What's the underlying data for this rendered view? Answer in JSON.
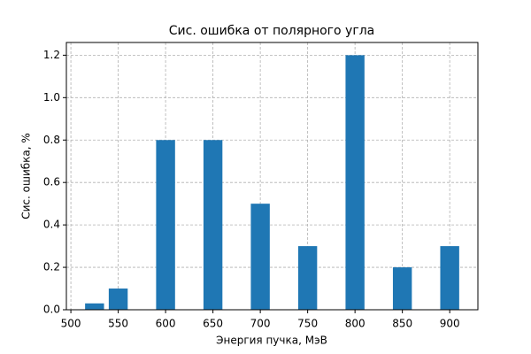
{
  "chart_data": {
    "type": "bar",
    "title": "Сис. ошибка от полярного угла",
    "x_label": "Энергия пучка, МэВ",
    "y_label": "Сис. ошибка, %",
    "x": [
      525,
      550,
      600,
      650,
      700,
      750,
      800,
      850,
      900
    ],
    "values": [
      0.03,
      0.1,
      0.8,
      0.8,
      0.5,
      0.3,
      1.2,
      0.2,
      0.3
    ],
    "bar_width": 20,
    "color": "#1f77b4",
    "xlim": [
      495.25,
      929.75
    ],
    "xticks": [
      500,
      550,
      600,
      650,
      700,
      750,
      800,
      850,
      900
    ],
    "ylim": [
      0,
      1.26
    ],
    "yticks": [
      {
        "value": 0,
        "label": "0.0"
      },
      0.2,
      0.4,
      0.6,
      0.8,
      {
        "value": 1,
        "label": "1.0"
      },
      1.2
    ],
    "grid": true
  }
}
